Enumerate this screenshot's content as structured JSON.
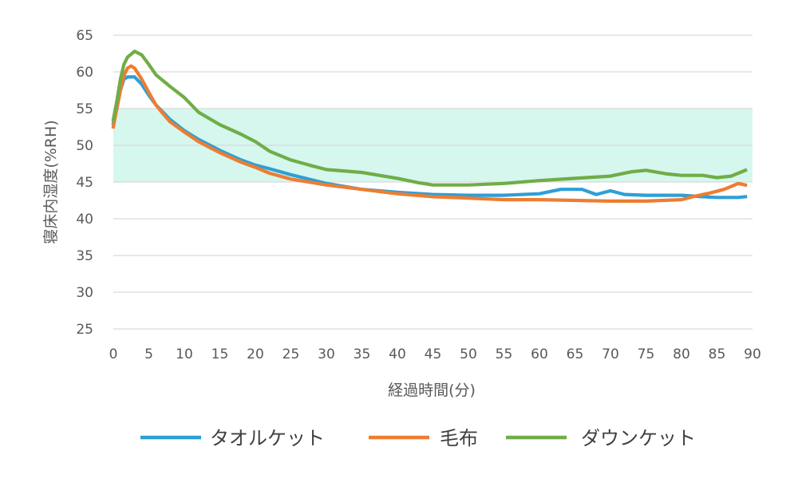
{
  "chart_data": {
    "type": "line",
    "title": "",
    "xlabel": "経過時間(分)",
    "ylabel": "寝床内湿度(%RH)",
    "xlim": [
      0,
      90
    ],
    "ylim": [
      25,
      65
    ],
    "x_ticks": [
      "0",
      "5",
      "10",
      "15",
      "20",
      "25",
      "30",
      "35",
      "40",
      "45",
      "50",
      "55",
      "60",
      "65",
      "70",
      "75",
      "80",
      "85",
      "90"
    ],
    "y_ticks": [
      "25",
      "30",
      "35",
      "40",
      "45",
      "50",
      "55",
      "60",
      "65"
    ],
    "band": {
      "from": 45,
      "to": 55,
      "color": "#d5f7ee"
    },
    "grid": true,
    "legend_position": "bottom",
    "series": [
      {
        "name": "タオルケット",
        "color": "#2e9fd6",
        "points": [
          [
            0,
            53
          ],
          [
            0.5,
            55
          ],
          [
            1,
            57.5
          ],
          [
            1.5,
            59
          ],
          [
            2,
            59.3
          ],
          [
            3,
            59.3
          ],
          [
            4,
            58.3
          ],
          [
            5,
            56.8
          ],
          [
            6,
            55.5
          ],
          [
            7,
            54.5
          ],
          [
            8,
            53.5
          ],
          [
            10,
            52
          ],
          [
            12,
            50.8
          ],
          [
            15,
            49.3
          ],
          [
            18,
            48
          ],
          [
            20,
            47.3
          ],
          [
            22,
            46.8
          ],
          [
            25,
            46
          ],
          [
            30,
            44.8
          ],
          [
            35,
            44
          ],
          [
            40,
            43.6
          ],
          [
            45,
            43.3
          ],
          [
            50,
            43.2
          ],
          [
            55,
            43.2
          ],
          [
            60,
            43.4
          ],
          [
            63,
            44
          ],
          [
            66,
            44
          ],
          [
            68,
            43.3
          ],
          [
            70,
            43.8
          ],
          [
            72,
            43.3
          ],
          [
            75,
            43.2
          ],
          [
            80,
            43.2
          ],
          [
            83,
            43
          ],
          [
            85,
            42.9
          ],
          [
            88,
            42.9
          ],
          [
            89,
            43
          ]
        ]
      },
      {
        "name": "毛布",
        "color": "#ed7d31",
        "points": [
          [
            0,
            52.5
          ],
          [
            0.5,
            55
          ],
          [
            1,
            57.5
          ],
          [
            1.5,
            59.5
          ],
          [
            2,
            60.5
          ],
          [
            2.5,
            60.8
          ],
          [
            3,
            60.5
          ],
          [
            4,
            59
          ],
          [
            5,
            57.2
          ],
          [
            6,
            55.5
          ],
          [
            7,
            54.3
          ],
          [
            8,
            53.2
          ],
          [
            10,
            51.8
          ],
          [
            12,
            50.5
          ],
          [
            15,
            49
          ],
          [
            18,
            47.7
          ],
          [
            20,
            47
          ],
          [
            22,
            46.2
          ],
          [
            25,
            45.4
          ],
          [
            30,
            44.6
          ],
          [
            35,
            44
          ],
          [
            40,
            43.4
          ],
          [
            45,
            43
          ],
          [
            50,
            42.8
          ],
          [
            55,
            42.6
          ],
          [
            60,
            42.6
          ],
          [
            65,
            42.5
          ],
          [
            70,
            42.4
          ],
          [
            75,
            42.4
          ],
          [
            80,
            42.6
          ],
          [
            82,
            43.1
          ],
          [
            84,
            43.5
          ],
          [
            86,
            44
          ],
          [
            88,
            44.8
          ],
          [
            89,
            44.6
          ]
        ]
      },
      {
        "name": "ダウンケット",
        "color": "#70ad47",
        "points": [
          [
            0,
            53.5
          ],
          [
            0.5,
            56
          ],
          [
            1,
            59
          ],
          [
            1.5,
            61
          ],
          [
            2,
            62
          ],
          [
            3,
            62.8
          ],
          [
            4,
            62.3
          ],
          [
            5,
            61
          ],
          [
            6,
            59.6
          ],
          [
            8,
            58
          ],
          [
            10,
            56.5
          ],
          [
            12,
            54.5
          ],
          [
            15,
            52.8
          ],
          [
            18,
            51.5
          ],
          [
            20,
            50.5
          ],
          [
            22,
            49.2
          ],
          [
            25,
            48
          ],
          [
            28,
            47.2
          ],
          [
            30,
            46.7
          ],
          [
            35,
            46.3
          ],
          [
            40,
            45.5
          ],
          [
            43,
            44.9
          ],
          [
            45,
            44.6
          ],
          [
            50,
            44.6
          ],
          [
            55,
            44.8
          ],
          [
            60,
            45.2
          ],
          [
            65,
            45.5
          ],
          [
            70,
            45.8
          ],
          [
            73,
            46.4
          ],
          [
            75,
            46.6
          ],
          [
            78,
            46.1
          ],
          [
            80,
            45.9
          ],
          [
            83,
            45.9
          ],
          [
            85,
            45.6
          ],
          [
            87,
            45.8
          ],
          [
            89,
            46.6
          ]
        ]
      }
    ]
  }
}
